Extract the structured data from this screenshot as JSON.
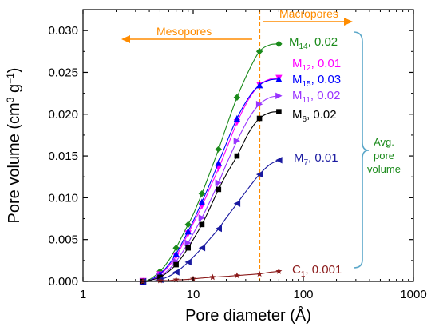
{
  "chart_data": {
    "type": "line",
    "xlabel": "Pore diameter (Å)",
    "ylabel_main": "Pore volume (cm",
    "ylabel_exp1": "3",
    "ylabel_mid": " g",
    "ylabel_exp2": "−1",
    "ylabel_end": ")",
    "x_scale": "log",
    "xlim": [
      1,
      1000
    ],
    "ylim": [
      0,
      0.0325
    ],
    "x_ticks": [
      1,
      10,
      100,
      1000
    ],
    "x_tick_labels": [
      "1",
      "10",
      "100",
      "1000"
    ],
    "y_ticks": [
      0,
      0.005,
      0.01,
      0.015,
      0.02,
      0.025,
      0.03
    ],
    "y_tick_labels": [
      "0.000",
      "0.005",
      "0.010",
      "0.015",
      "0.020",
      "0.025",
      "0.030"
    ],
    "vline_x": 40,
    "annotations": {
      "mesopores": "Mesopores",
      "macropores": "Macropores",
      "avg_line1": "Avg.",
      "avg_line2": "pore",
      "avg_line3": "volume"
    },
    "series": [
      {
        "name_main": "M",
        "name_sub": "14",
        "value_text": ", 0.02",
        "color": "#1a8a1a",
        "marker": "diamond",
        "x": [
          3.5,
          4,
          5,
          6,
          7,
          8,
          9,
          10,
          12,
          14,
          17,
          20,
          25,
          32,
          40,
          50,
          60
        ],
        "y": [
          0.0,
          0.0002,
          0.0012,
          0.0025,
          0.004,
          0.0055,
          0.0068,
          0.008,
          0.0105,
          0.0128,
          0.0158,
          0.0185,
          0.022,
          0.0252,
          0.0275,
          0.0283,
          0.0284
        ]
      },
      {
        "name_main": "M",
        "name_sub": "12",
        "value_text": ", 0.01",
        "color": "#ff00ff",
        "marker": "tri-down",
        "x": [
          3.5,
          4,
          5,
          6,
          7,
          8,
          9,
          10,
          12,
          14,
          17,
          20,
          25,
          32,
          40,
          50,
          60
        ],
        "y": [
          0.0,
          0.0001,
          0.0008,
          0.0018,
          0.003,
          0.0044,
          0.0057,
          0.0069,
          0.009,
          0.011,
          0.0135,
          0.0158,
          0.019,
          0.0218,
          0.0235,
          0.0242,
          0.0243
        ]
      },
      {
        "name_main": "M",
        "name_sub": "15",
        "value_text": ", 0.03",
        "color": "#0000ff",
        "marker": "tri-up",
        "x": [
          3.5,
          4,
          5,
          6,
          7,
          8,
          9,
          10,
          12,
          14,
          17,
          20,
          25,
          32,
          40,
          50,
          60
        ],
        "y": [
          0.0,
          0.0001,
          0.0009,
          0.002,
          0.0033,
          0.0047,
          0.006,
          0.0072,
          0.0095,
          0.0115,
          0.0142,
          0.0165,
          0.0195,
          0.022,
          0.0235,
          0.0241,
          0.0242
        ]
      },
      {
        "name_main": "M",
        "name_sub": "11",
        "value_text": ", 0.02",
        "color": "#9933ff",
        "marker": "tri-right",
        "x": [
          3.5,
          4,
          5,
          6,
          7,
          8,
          9,
          10,
          12,
          14,
          17,
          20,
          25,
          32,
          40,
          50,
          60
        ],
        "y": [
          0.0,
          0.0001,
          0.0006,
          0.0014,
          0.0024,
          0.0035,
          0.0046,
          0.0057,
          0.0076,
          0.0094,
          0.0118,
          0.014,
          0.0168,
          0.0195,
          0.0212,
          0.022,
          0.0222
        ]
      },
      {
        "name_main": "M",
        "name_sub": "6",
        "value_text": ", 0.02",
        "color": "#000000",
        "marker": "square",
        "x": [
          3.5,
          4,
          5,
          6,
          7,
          8,
          9,
          10,
          12,
          14,
          17,
          20,
          25,
          32,
          40,
          50,
          60
        ],
        "y": [
          0.0,
          0.0001,
          0.0005,
          0.0012,
          0.002,
          0.003,
          0.004,
          0.005,
          0.0068,
          0.0086,
          0.011,
          0.0128,
          0.015,
          0.0178,
          0.0195,
          0.0202,
          0.0203
        ]
      },
      {
        "name_main": "M",
        "name_sub": "7",
        "value_text": ", 0.01",
        "color": "#1a1aa0",
        "marker": "tri-left",
        "x": [
          3.5,
          4,
          5,
          6,
          7,
          8,
          9,
          10,
          12,
          14,
          17,
          20,
          25,
          32,
          40,
          50,
          60
        ],
        "y": [
          0.0,
          0.0,
          0.0002,
          0.0006,
          0.0011,
          0.0017,
          0.0023,
          0.0029,
          0.004,
          0.005,
          0.0063,
          0.0076,
          0.0093,
          0.0112,
          0.0128,
          0.014,
          0.0145
        ]
      },
      {
        "name_main": "C",
        "name_sub": "1",
        "value_text": ", 0.001",
        "color": "#8b1a1a",
        "marker": "star",
        "x": [
          3.5,
          4,
          5,
          6,
          7,
          8,
          10,
          12,
          15,
          20,
          25,
          32,
          40,
          50,
          60
        ],
        "y": [
          0.0,
          0.0,
          0.0001,
          0.0001,
          0.0002,
          0.0002,
          0.0003,
          0.0004,
          0.0005,
          0.0006,
          0.0007,
          0.0008,
          0.0009,
          0.0011,
          0.0012
        ]
      }
    ]
  }
}
